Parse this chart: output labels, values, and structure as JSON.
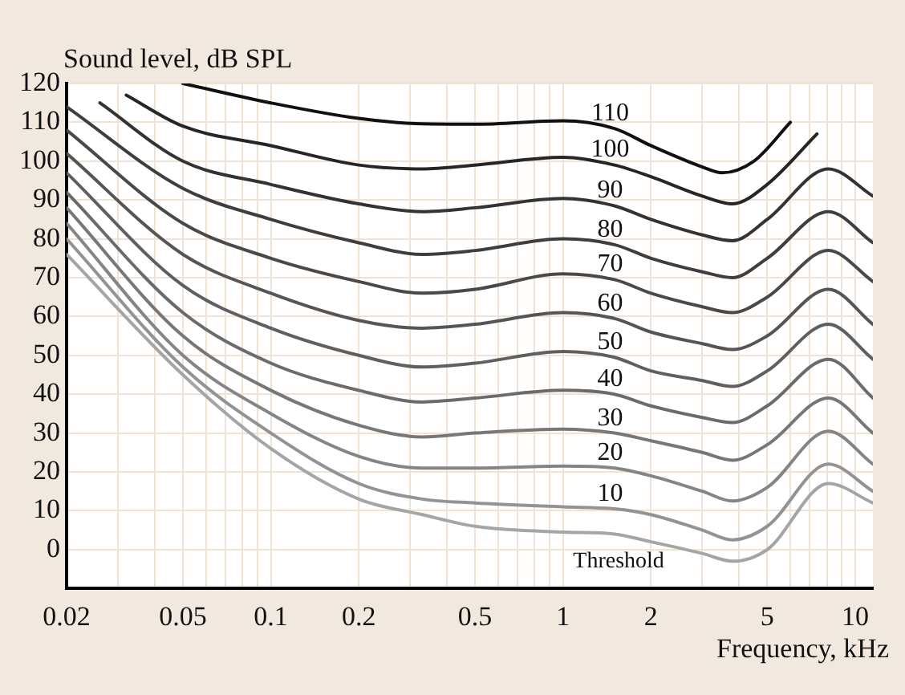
{
  "chart_data": {
    "type": "line",
    "xlabel": "Frequency, kHz",
    "ylabel": "Sound level, dB SPL",
    "log": "x",
    "grid": true,
    "legend": false,
    "marker": "none",
    "line_style": "solid",
    "xlim": [
      0.02,
      11.5
    ],
    "ylim": [
      -10,
      120
    ],
    "xticks": [
      0.02,
      {
        "value": 0.03,
        "label": null
      },
      {
        "value": 0.04,
        "label": null
      },
      0.05,
      {
        "value": 0.06,
        "label": null
      },
      {
        "value": 0.07,
        "label": null
      },
      {
        "value": 0.08,
        "label": null
      },
      {
        "value": 0.09,
        "label": null
      },
      0.1,
      0.2,
      {
        "value": 0.3,
        "label": null
      },
      {
        "value": 0.4,
        "label": null
      },
      0.5,
      {
        "value": 0.6,
        "label": null
      },
      {
        "value": 0.7,
        "label": null
      },
      {
        "value": 0.8,
        "label": null
      },
      {
        "value": 0.9,
        "label": null
      },
      1,
      2,
      {
        "value": 3,
        "label": null
      },
      {
        "value": 4,
        "label": null
      },
      5,
      {
        "value": 6,
        "label": null
      },
      {
        "value": 7,
        "label": null
      },
      {
        "value": 8,
        "label": null
      },
      {
        "value": 9,
        "label": null
      },
      10
    ],
    "yticks": [
      0,
      10,
      20,
      30,
      40,
      50,
      60,
      70,
      80,
      90,
      100,
      110,
      120
    ],
    "series": [
      {
        "name": "110",
        "color": "#111111",
        "x": [
          0.05,
          0.1,
          0.2,
          0.33,
          0.5,
          1,
          1.5,
          2,
          3,
          3.5,
          4.5,
          6
        ],
        "values": [
          120,
          115,
          111,
          109.6,
          109.5,
          110.4,
          108.4,
          104,
          98.5,
          97,
          100,
          110
        ]
      },
      {
        "name": "100",
        "color": "#262626",
        "x": [
          0.032,
          0.05,
          0.1,
          0.2,
          0.33,
          0.5,
          1,
          1.5,
          2,
          3,
          3.8,
          5,
          7.4
        ],
        "values": [
          117,
          109,
          104,
          99,
          98,
          99,
          101,
          99,
          96,
          91,
          89,
          94,
          107
        ]
      },
      {
        "name": "90",
        "color": "#333333",
        "x": [
          0.026,
          0.05,
          0.1,
          0.2,
          0.33,
          0.5,
          1,
          1.5,
          2,
          3,
          3.8,
          5,
          8.1,
          11.5
        ],
        "values": [
          115,
          100,
          94,
          89,
          87,
          88,
          90.4,
          88.5,
          85,
          81,
          79.5,
          85,
          98,
          91
        ]
      },
      {
        "name": "80",
        "color": "#3e3e3e",
        "x": [
          0.02,
          0.05,
          0.1,
          0.2,
          0.33,
          0.5,
          1,
          1.5,
          2,
          3,
          3.8,
          5,
          8.1,
          11.5
        ],
        "values": [
          114,
          93,
          85,
          79,
          76,
          77,
          80,
          78.5,
          75,
          71.5,
          70,
          75,
          87,
          79
        ]
      },
      {
        "name": "70",
        "color": "#494949",
        "x": [
          0.02,
          0.05,
          0.1,
          0.2,
          0.33,
          0.5,
          1,
          1.5,
          2,
          3,
          3.8,
          5,
          8.1,
          11.5
        ],
        "values": [
          108,
          84,
          75,
          69,
          66,
          67,
          71,
          69.5,
          66,
          62.5,
          61,
          65,
          77,
          69
        ]
      },
      {
        "name": "60",
        "color": "#555555",
        "x": [
          0.02,
          0.05,
          0.1,
          0.2,
          0.33,
          0.5,
          1,
          1.5,
          2,
          3,
          3.8,
          5,
          8.1,
          11.5
        ],
        "values": [
          102,
          76,
          66,
          59,
          57,
          58,
          61,
          59.5,
          56,
          53,
          51.5,
          55,
          67,
          58
        ]
      },
      {
        "name": "50",
        "color": "#5f5f5f",
        "x": [
          0.02,
          0.05,
          0.1,
          0.2,
          0.33,
          0.5,
          1,
          1.5,
          2,
          3,
          3.8,
          5,
          8.1,
          11.5
        ],
        "values": [
          97,
          68,
          57,
          50,
          47,
          48,
          51,
          49.5,
          46,
          43.5,
          42,
          46,
          58,
          49
        ]
      },
      {
        "name": "40",
        "color": "#6b6b6b",
        "x": [
          0.02,
          0.05,
          0.1,
          0.2,
          0.33,
          0.5,
          1,
          1.5,
          2,
          3,
          3.8,
          5,
          8.1,
          11.5
        ],
        "values": [
          92,
          61,
          48,
          41,
          38,
          39,
          41,
          40,
          37,
          34,
          32.7,
          37,
          49,
          39
        ]
      },
      {
        "name": "30",
        "color": "#777777",
        "x": [
          0.02,
          0.05,
          0.1,
          0.2,
          0.33,
          0.5,
          1,
          1.5,
          2,
          3,
          3.8,
          5,
          8.1,
          11.5
        ],
        "values": [
          88,
          55,
          41,
          32,
          29,
          30,
          31,
          30,
          28,
          25,
          23,
          27,
          39,
          30
        ]
      },
      {
        "name": "20",
        "color": "#858585",
        "x": [
          0.02,
          0.05,
          0.1,
          0.2,
          0.33,
          0.5,
          1,
          1.5,
          2,
          3,
          3.8,
          5,
          8.1,
          11.5
        ],
        "values": [
          84,
          50,
          35,
          24,
          21,
          21,
          21.5,
          21,
          19,
          15,
          12.5,
          16,
          30.5,
          22
        ]
      },
      {
        "name": "10",
        "color": "#939393",
        "x": [
          0.02,
          0.05,
          0.1,
          0.2,
          0.33,
          0.5,
          1,
          1.5,
          2,
          3,
          3.8,
          5,
          8.1,
          11.5
        ],
        "values": [
          80,
          47,
          30,
          17,
          13,
          12,
          11,
          10.5,
          9,
          5,
          2.5,
          6,
          22,
          15
        ]
      },
      {
        "name": "Threshold",
        "color": "#a5a5a5",
        "x": [
          0.02,
          0.05,
          0.1,
          0.2,
          0.33,
          0.5,
          1,
          1.5,
          2,
          3,
          3.8,
          5,
          8.1,
          11.5
        ],
        "values": [
          76,
          45,
          26,
          13,
          9,
          6,
          4.5,
          4,
          2,
          -1,
          -3,
          0,
          17,
          12
        ]
      }
    ]
  }
}
